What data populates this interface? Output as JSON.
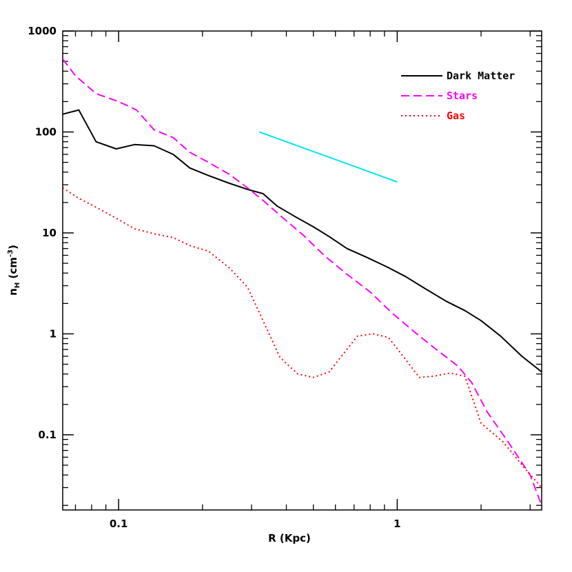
{
  "chart_data": {
    "type": "line",
    "title": "",
    "xlabel": "R (Kpc)",
    "ylabel_main": "n",
    "ylabel_sub": "H",
    "ylabel_unit_open": " (cm",
    "ylabel_unit_sup": "-3",
    "ylabel_unit_close": ")",
    "xscale": "log",
    "yscale": "log",
    "xlim": [
      0.063,
      3.3
    ],
    "ylim": [
      0.018,
      1000
    ],
    "x_ticks": [
      {
        "value": 0.1,
        "label": "0.1"
      },
      {
        "value": 1,
        "label": "1"
      }
    ],
    "y_ticks": [
      {
        "value": 0.1,
        "label": "0.1"
      },
      {
        "value": 1,
        "label": "1"
      },
      {
        "value": 10,
        "label": "10"
      },
      {
        "value": 100,
        "label": "100"
      },
      {
        "value": 1000,
        "label": "1000"
      }
    ],
    "legend_position": "top-right",
    "series": [
      {
        "name": "Dark Matter",
        "color": "#000000",
        "dash": "solid",
        "x": [
          0.063,
          0.072,
          0.083,
          0.098,
          0.114,
          0.134,
          0.157,
          0.18,
          0.21,
          0.25,
          0.29,
          0.33,
          0.37,
          0.43,
          0.5,
          0.57,
          0.66,
          0.78,
          0.92,
          1.07,
          1.26,
          1.5,
          1.75,
          2.0,
          2.35,
          2.8,
          3.3
        ],
        "y": [
          150,
          165,
          80,
          68,
          75,
          73,
          60,
          44,
          37,
          31,
          27,
          24.5,
          18.5,
          14.5,
          11.5,
          9.2,
          7.0,
          5.7,
          4.6,
          3.7,
          2.8,
          2.1,
          1.7,
          1.35,
          0.95,
          0.6,
          0.42
        ]
      },
      {
        "name": "Stars",
        "color": "#ff00ff",
        "dash": "dashed",
        "x": [
          0.063,
          0.07,
          0.083,
          0.1,
          0.116,
          0.134,
          0.157,
          0.18,
          0.21,
          0.25,
          0.29,
          0.33,
          0.39,
          0.46,
          0.55,
          0.66,
          0.8,
          0.96,
          1.15,
          1.4,
          1.65,
          1.85,
          2.1,
          2.5,
          3.0,
          3.3
        ],
        "y": [
          530,
          360,
          240,
          200,
          165,
          105,
          88,
          63,
          50,
          38,
          28,
          21,
          14,
          9.5,
          5.9,
          3.9,
          2.6,
          1.6,
          1.05,
          0.68,
          0.48,
          0.33,
          0.17,
          0.085,
          0.04,
          0.02
        ]
      },
      {
        "name": "Gas",
        "color": "#ff0000",
        "dash": "dotted",
        "x": [
          0.063,
          0.072,
          0.083,
          0.098,
          0.114,
          0.134,
          0.157,
          0.18,
          0.21,
          0.25,
          0.29,
          0.33,
          0.38,
          0.44,
          0.5,
          0.57,
          0.64,
          0.72,
          0.82,
          0.93,
          1.05,
          1.2,
          1.35,
          1.55,
          1.75,
          2.0,
          2.4,
          2.9,
          3.3
        ],
        "y": [
          28,
          22,
          18,
          14,
          11,
          9.8,
          9.0,
          7.5,
          6.6,
          4.5,
          2.9,
          1.35,
          0.58,
          0.4,
          0.37,
          0.42,
          0.63,
          0.95,
          1.0,
          0.92,
          0.6,
          0.37,
          0.38,
          0.41,
          0.38,
          0.13,
          0.085,
          0.045,
          0.03
        ]
      },
      {
        "name": "",
        "color": "#00e5ee",
        "dash": "solid",
        "x": [
          0.32,
          1.0
        ],
        "y": [
          100,
          32
        ]
      }
    ]
  }
}
